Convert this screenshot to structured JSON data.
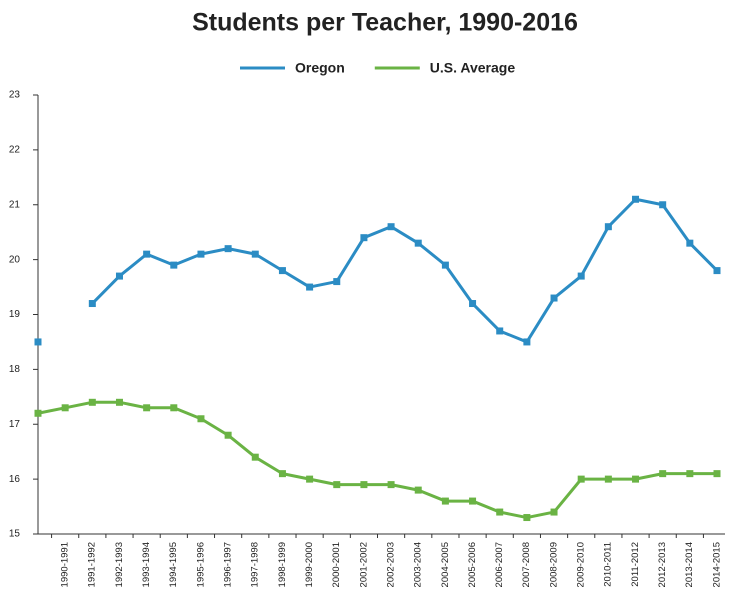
{
  "chart_data": {
    "type": "line",
    "title": "Students per Teacher, 1990-2016",
    "categories": [
      "1990-1991",
      "1991-1992",
      "1992-1993",
      "1993-1994",
      "1994-1995",
      "1995-1996",
      "1996-1997",
      "1997-1998",
      "1998-1999",
      "1999-2000",
      "2000-2001",
      "2001-2002",
      "2002-2003",
      "2003-2004",
      "2004-2005",
      "2005-2006",
      "2006-2007",
      "2007-2008",
      "2008-2009",
      "2009-2010",
      "2010-2011",
      "2011-2012",
      "2012-2013",
      "2013-2014",
      "2014-2015",
      "2015-2016"
    ],
    "series": [
      {
        "name": "Oregon",
        "color": "#2b8cc4",
        "values": [
          18.5,
          null,
          19.2,
          19.7,
          20.1,
          19.9,
          20.1,
          20.2,
          20.1,
          19.8,
          19.5,
          19.6,
          20.4,
          20.6,
          20.3,
          19.9,
          19.2,
          18.7,
          18.5,
          19.3,
          19.7,
          20.6,
          21.1,
          21.0,
          20.3,
          19.8
        ]
      },
      {
        "name": "U.S. Average",
        "color": "#6ab344",
        "values": [
          17.2,
          17.3,
          17.4,
          17.4,
          17.3,
          17.3,
          17.1,
          16.8,
          16.4,
          16.1,
          16.0,
          15.9,
          15.9,
          15.9,
          15.8,
          15.6,
          15.6,
          15.4,
          15.3,
          15.4,
          16.0,
          16.0,
          16.0,
          16.1,
          16.1,
          16.1
        ]
      }
    ],
    "ylim": [
      15,
      23
    ],
    "yticks": [
      15,
      16,
      17,
      18,
      19,
      20,
      21,
      22,
      23
    ],
    "legend": "top"
  }
}
